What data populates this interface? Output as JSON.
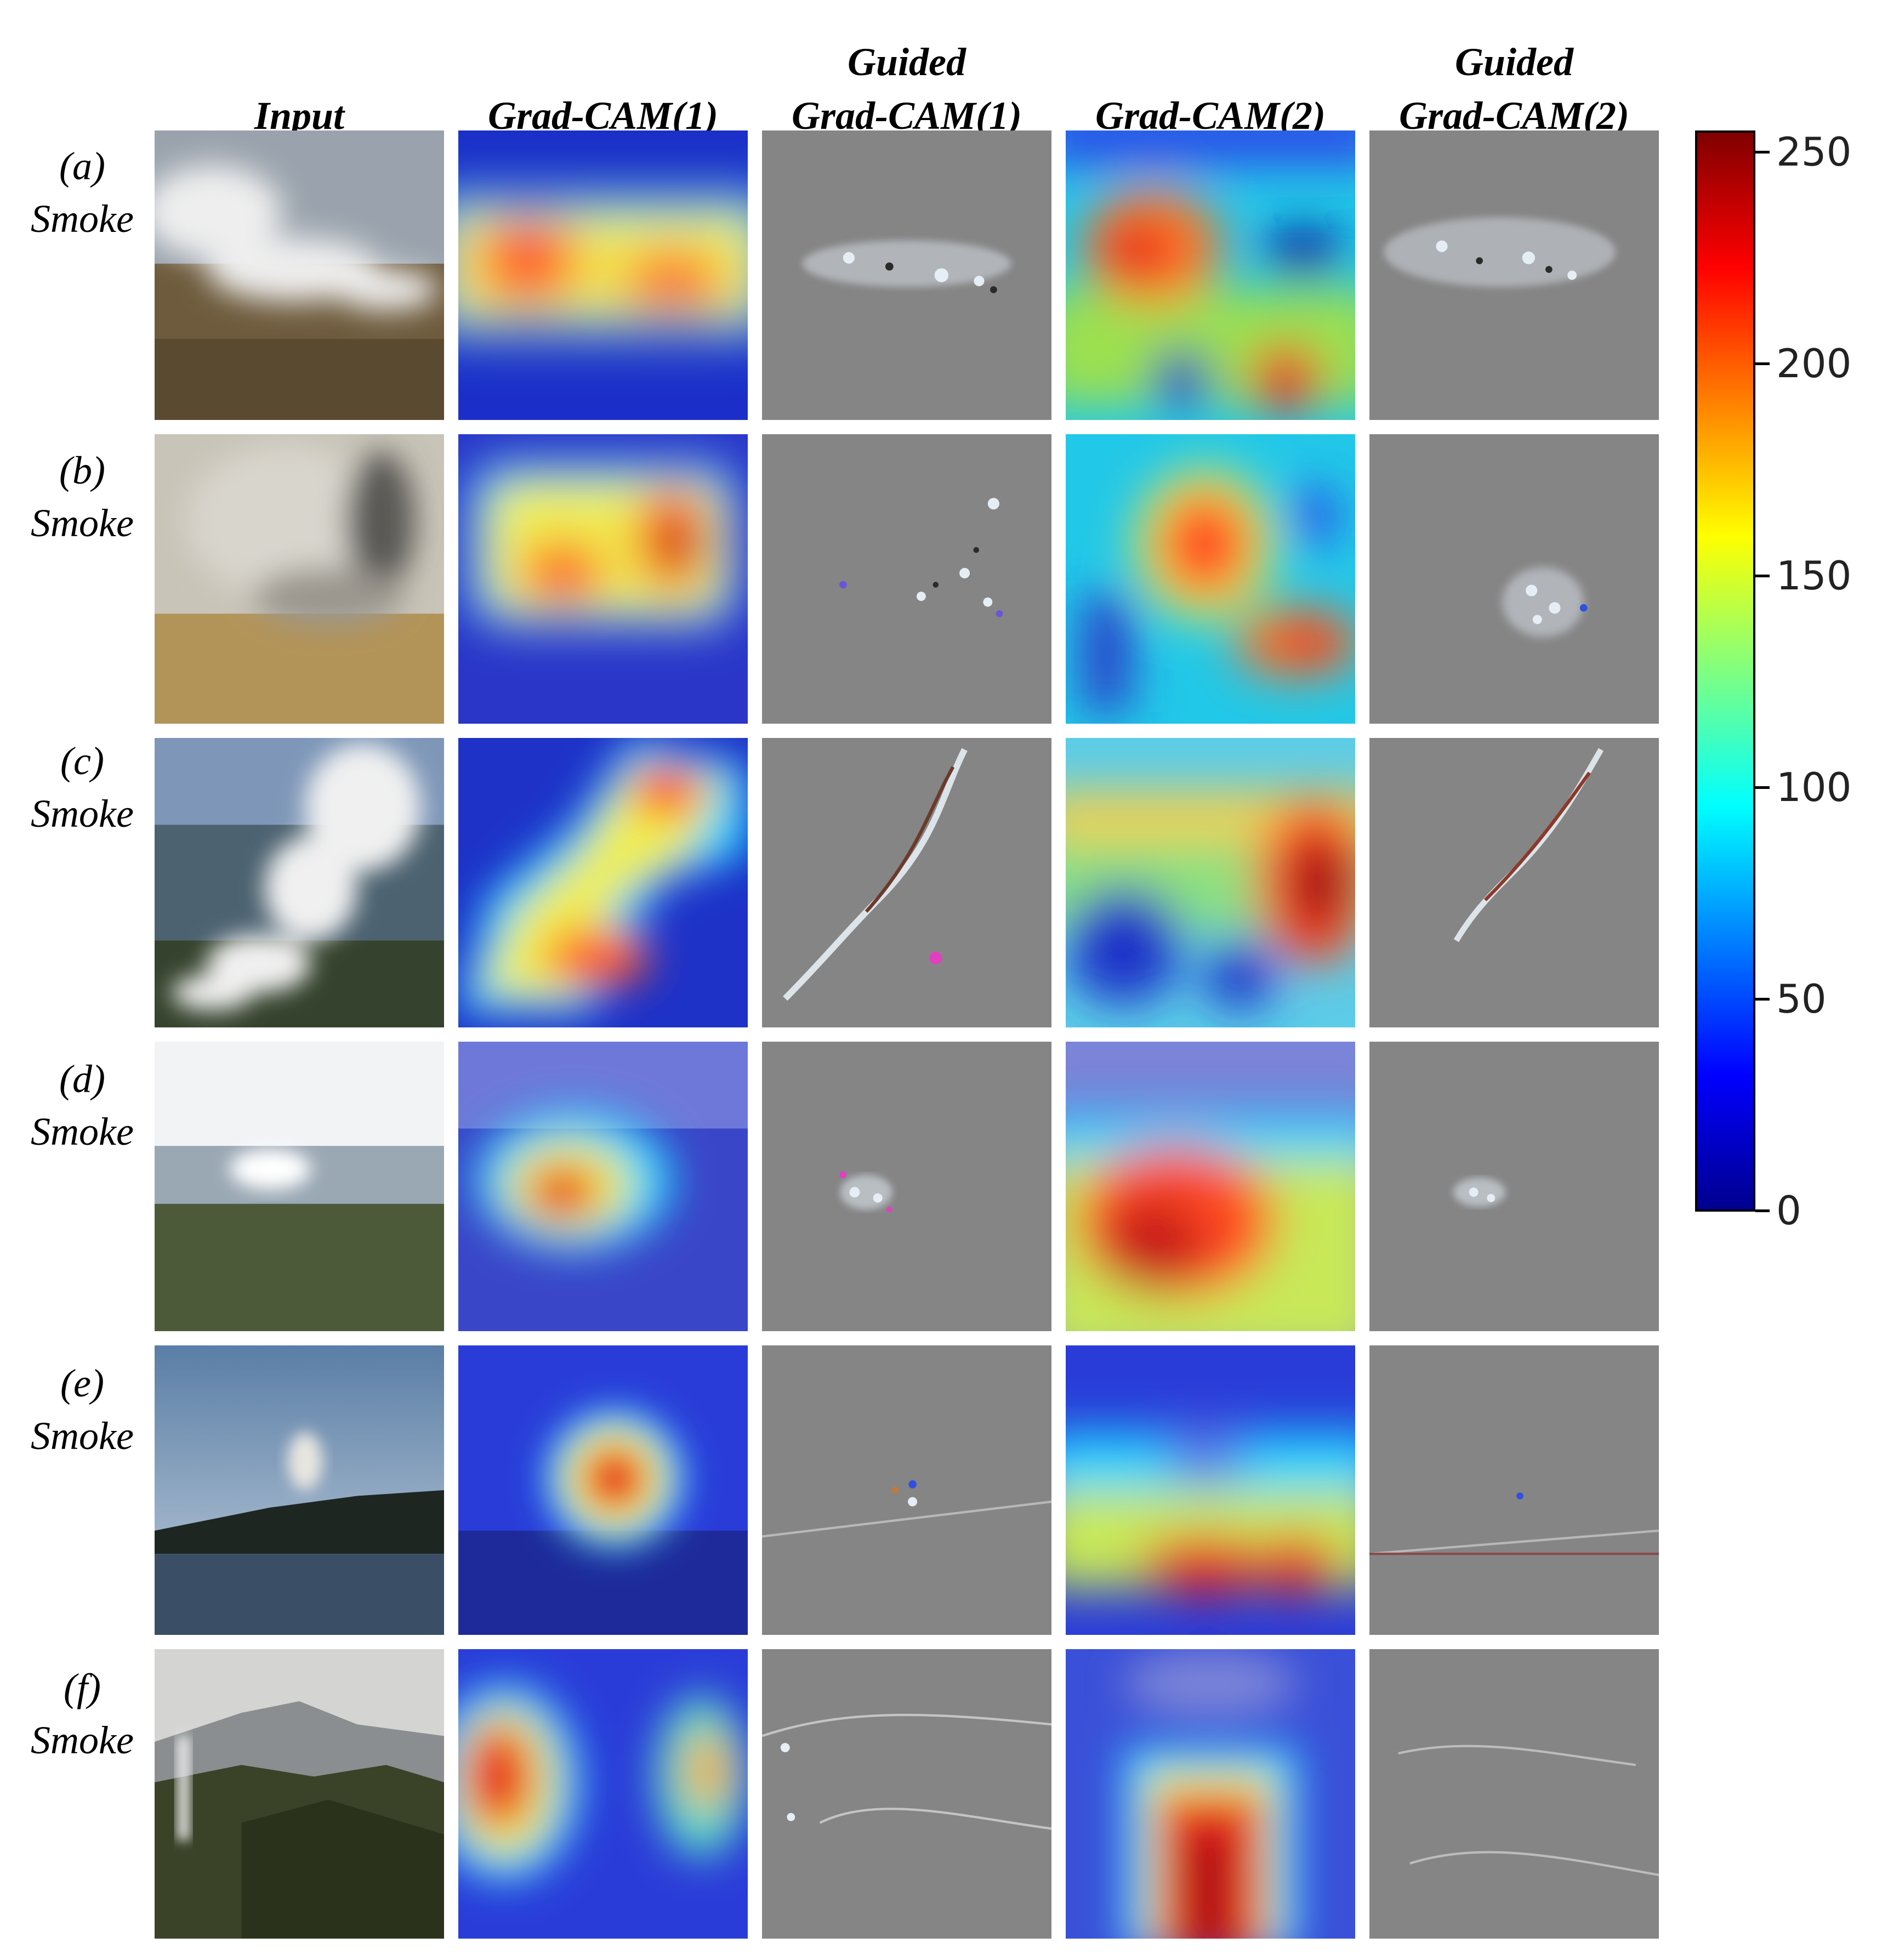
{
  "columns": [
    {
      "lines": [
        "Input"
      ]
    },
    {
      "lines": [
        "Grad-CAM(1)"
      ]
    },
    {
      "lines": [
        "Guided",
        "Grad-CAM(1)"
      ]
    },
    {
      "lines": [
        "Grad-CAM(2)"
      ]
    },
    {
      "lines": [
        "Guided",
        "Grad-CAM(2)"
      ]
    }
  ],
  "rows": [
    {
      "id": "(a)",
      "label": "Smoke"
    },
    {
      "id": "(b)",
      "label": "Smoke"
    },
    {
      "id": "(c)",
      "label": "Smoke"
    },
    {
      "id": "(d)",
      "label": "Smoke"
    },
    {
      "id": "(e)",
      "label": "Smoke"
    },
    {
      "id": "(f)",
      "label": "Smoke"
    }
  ],
  "colorbar": {
    "colormap": "jet",
    "min": 0,
    "max": 255,
    "ticks": [
      "0",
      "50",
      "100",
      "150",
      "200",
      "250"
    ]
  }
}
